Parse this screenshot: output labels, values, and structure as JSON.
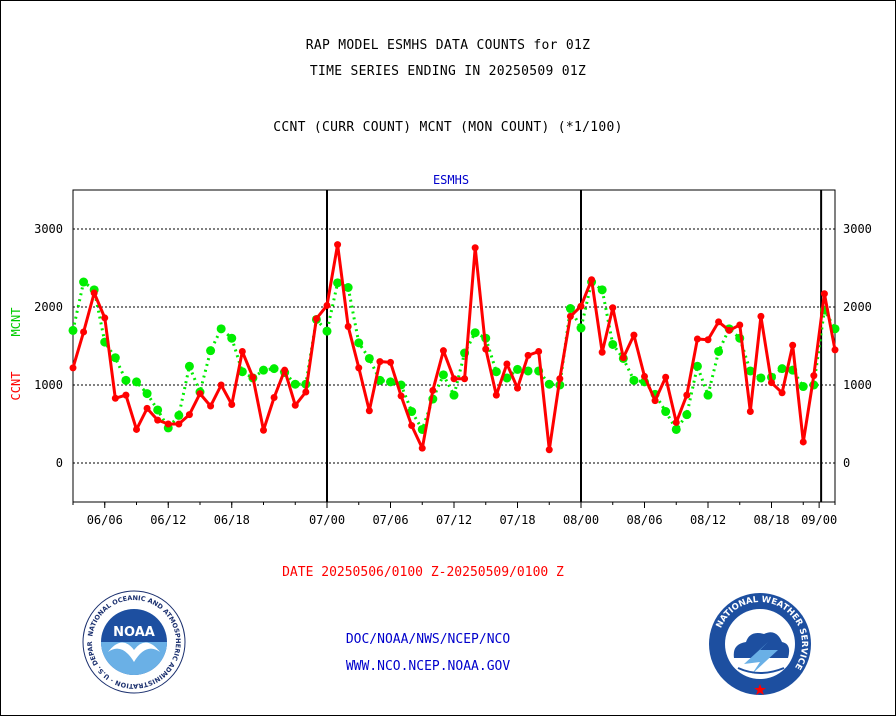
{
  "header": {
    "title_line1": "RAP MODEL ESMHS DATA COUNTS for 01Z",
    "title_line2": "TIME SERIES ENDING IN 20250509 01Z",
    "subtitle": "CCNT (CURR COUNT) MCNT (MON COUNT) (*1/100)"
  },
  "footer": {
    "date_range": "DATE 20250506/0100 Z-20250509/0100 Z",
    "org_path": "DOC/NOAA/NWS/NCEP/NCO",
    "website": "WWW.NCO.NCEP.NOAA.GOV"
  },
  "logos": {
    "left": "noaa-logo",
    "left_text": "NOAA",
    "left_ring_text": "NATIONAL OCEANIC AND ATMOSPHERIC ADMINISTRATION · U.S. DEPARTMENT OF COMMERCE",
    "right": "national-weather-service-logo",
    "right_ring_text": "NATIONAL WEATHER SERVICE"
  },
  "colors": {
    "ccnt": "#ff0000",
    "mcnt": "#00ee00",
    "axis": "#000000",
    "plot_title": "#0000cc",
    "footer": "#0000cc",
    "date": "#ff0000"
  },
  "chart_data": {
    "type": "line",
    "title": "ESMHS",
    "ylabel_ccnt": "CCNT",
    "ylabel_mcnt": "MCNT",
    "ylim": [
      -500,
      3500
    ],
    "yticks": [
      0,
      1000,
      2000,
      3000
    ],
    "grid": "horizontal",
    "x_ticks": [
      "06/06",
      "06/12",
      "06/18",
      "07/00",
      "07/06",
      "07/12",
      "07/18",
      "08/00",
      "08/06",
      "08/12",
      "08/18",
      "09/00"
    ],
    "day_boundaries": [
      "07/00",
      "08/00",
      "09/00"
    ],
    "series": [
      {
        "name": "CCNT",
        "values": [
          1220,
          1680,
          2180,
          1860,
          830,
          870,
          430,
          700,
          550,
          500,
          500,
          620,
          890,
          730,
          1000,
          750,
          1430,
          1100,
          420,
          840,
          1190,
          740,
          910,
          1850,
          2020,
          2800,
          1750,
          1220,
          670,
          1300,
          1290,
          860,
          480,
          190,
          930,
          1440,
          1080,
          1080,
          2760,
          1460,
          870,
          1270,
          960,
          1380,
          1430,
          170,
          1080,
          1880,
          2010,
          2350,
          1420,
          1990,
          1350,
          1640,
          1110,
          800,
          1100,
          520,
          870,
          1590,
          1580,
          1810,
          1700,
          1770,
          660,
          1880,
          1030,
          900,
          1510,
          270,
          1120,
          2170,
          1450
        ],
        "x_index_start": 0
      },
      {
        "name": "MCNT",
        "values": [
          1700,
          2320,
          2220,
          1550,
          1350,
          1060,
          1040,
          890,
          680,
          450,
          610,
          1240,
          910,
          1440,
          1720,
          1600,
          1170,
          1090,
          1190,
          1210,
          1160,
          1010,
          1010,
          1840,
          1690,
          2310,
          2250,
          1540,
          1340,
          1060,
          1040,
          1000,
          660,
          430,
          820,
          1130,
          870,
          1410,
          1670,
          1600,
          1170,
          1090,
          1200,
          1180,
          1180,
          1010,
          1000,
          1980,
          1730,
          2320,
          2220,
          1520,
          1340,
          1060,
          1040,
          880,
          660,
          430,
          620,
          1240,
          870,
          1430,
          1720,
          1600,
          1180,
          1090,
          1100,
          1210,
          1190,
          980,
          1000,
          1960,
          1720
        ],
        "x_index_start": 0
      }
    ]
  }
}
